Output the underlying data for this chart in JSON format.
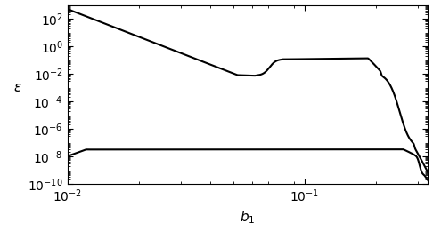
{
  "xlabel": "$b_1$",
  "ylabel": "$\\varepsilon$",
  "xlim_log": [
    -2,
    -0.48
  ],
  "ylim_log": [
    -10,
    3
  ],
  "line_color": "#000000",
  "line_width": 1.5,
  "background": "#ffffff",
  "figsize": [
    4.86,
    2.6
  ],
  "dpi": 100
}
